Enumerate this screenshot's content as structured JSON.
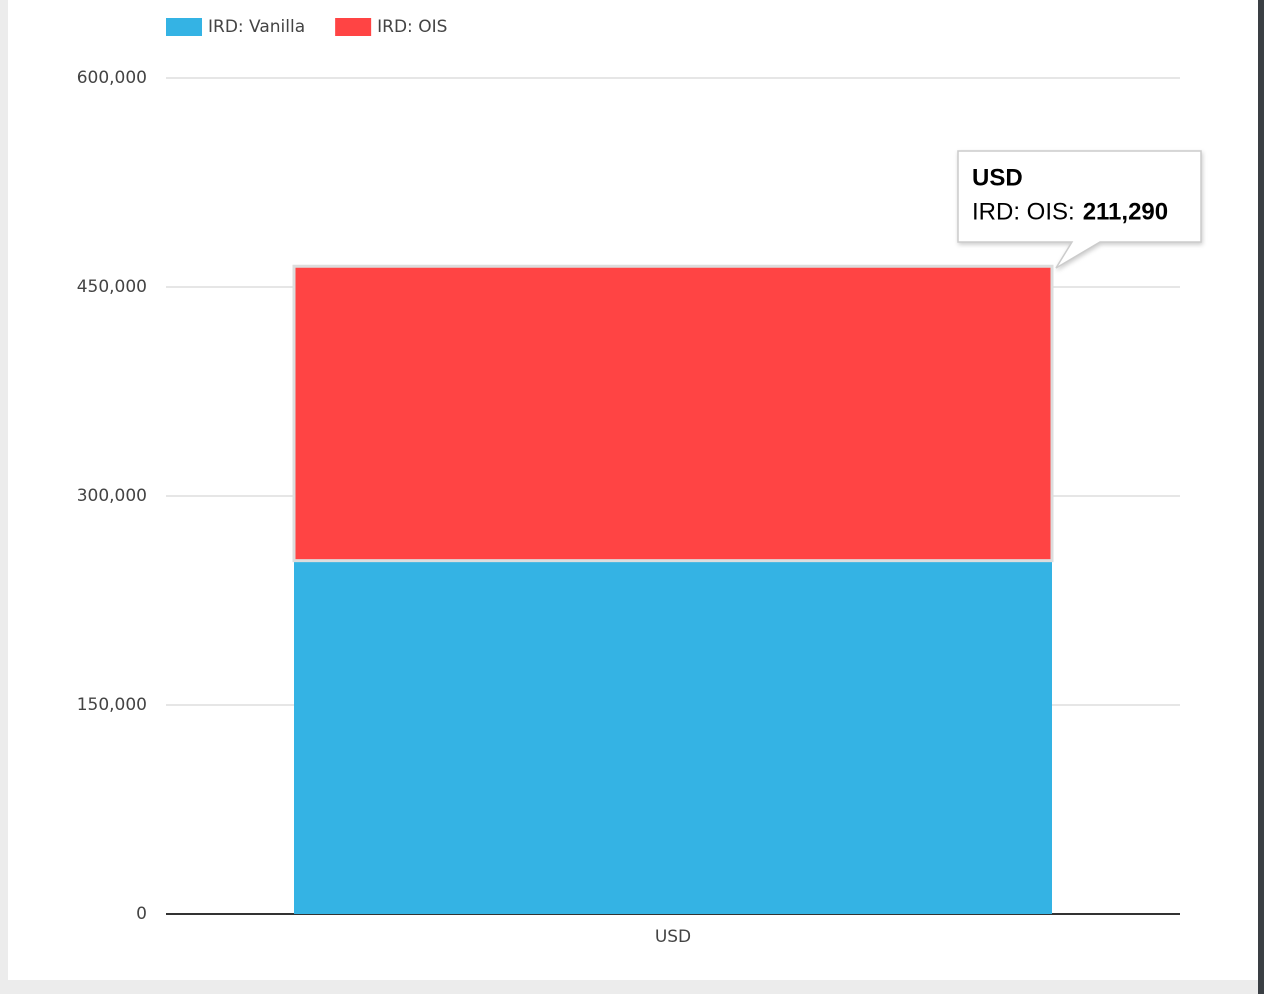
{
  "chart_data": {
    "type": "stacked-bar",
    "categories": [
      "USD"
    ],
    "series": [
      {
        "name": "IRD: Vanilla",
        "color": "#34b3e4",
        "values": [
          253600
        ]
      },
      {
        "name": "IRD: OIS",
        "color": "#ff4444",
        "values": [
          211290
        ],
        "value_labels": [
          "211,290"
        ]
      }
    ],
    "ylim": [
      0,
      600000
    ],
    "yticks": [
      0,
      {
        "value": 150000,
        "label": "150,000"
      },
      {
        "value": 300000,
        "label": "300,000"
      },
      {
        "value": 450000,
        "label": "450,000"
      },
      {
        "value": 600000,
        "label": "600,000"
      }
    ],
    "grid": true,
    "legend": "top-left",
    "tooltip": {
      "series_label": "IRD: OIS:"
    }
  }
}
